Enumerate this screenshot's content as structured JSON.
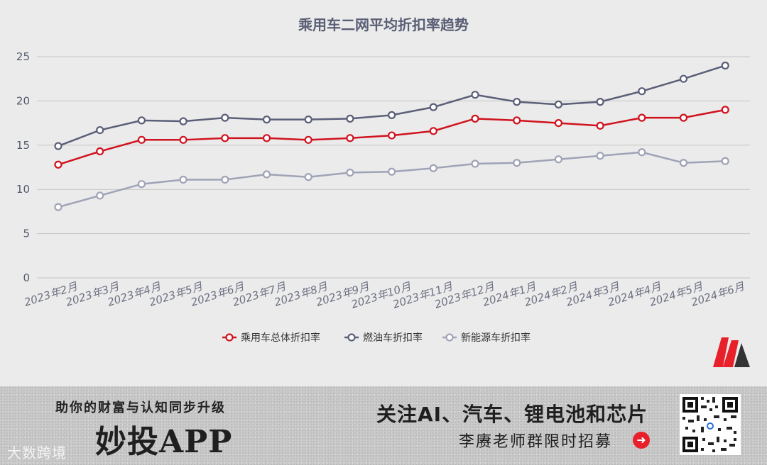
{
  "chart_data": {
    "type": "line",
    "title": "乘用车二网平均折扣率趋势",
    "categories": [
      "2023年2月",
      "2023年3月",
      "2023年4月",
      "2023年5月",
      "2023年6月",
      "2023年7月",
      "2023年8月",
      "2023年9月",
      "2023年10月",
      "2023年11月",
      "2023年12月",
      "2024年1月",
      "2024年2月",
      "2024年3月",
      "2024年4月",
      "2024年5月",
      "2024年6月"
    ],
    "ylim": [
      0,
      25
    ],
    "yticks": [
      0,
      5,
      10,
      15,
      20,
      25
    ],
    "grid": true,
    "legend_position": "bottom",
    "series": [
      {
        "name": "乘用车总体折扣率",
        "color": "#d0131f",
        "values": [
          12.8,
          14.3,
          15.6,
          15.6,
          15.8,
          15.8,
          15.6,
          15.8,
          16.1,
          16.6,
          18.0,
          17.8,
          17.5,
          17.2,
          18.1,
          18.1,
          19.0
        ]
      },
      {
        "name": "燃油车折扣率",
        "color": "#5b5f78",
        "values": [
          14.9,
          16.7,
          17.8,
          17.7,
          18.1,
          17.9,
          17.9,
          18.0,
          18.4,
          19.3,
          20.7,
          19.9,
          19.6,
          19.9,
          21.1,
          22.5,
          24.0
        ]
      },
      {
        "name": "新能源车折扣率",
        "color": "#9fa3b6",
        "values": [
          8.0,
          9.3,
          10.6,
          11.1,
          11.1,
          11.7,
          11.4,
          11.9,
          12.0,
          12.4,
          12.9,
          13.0,
          13.4,
          13.8,
          14.2,
          13.0,
          13.2
        ]
      }
    ]
  },
  "banner": {
    "left_title": "助你的财富与认知同步升级",
    "app_name": "妙投APP",
    "right_title": "关注AI、汽车、锂电池和芯片",
    "right_sub": "李赓老师群限时招募",
    "watermark": "大数跨境"
  },
  "icons": {
    "arrow": "arrow-right-circle-icon",
    "logo": "m-logo-icon",
    "qr": "qr-code-icon"
  }
}
